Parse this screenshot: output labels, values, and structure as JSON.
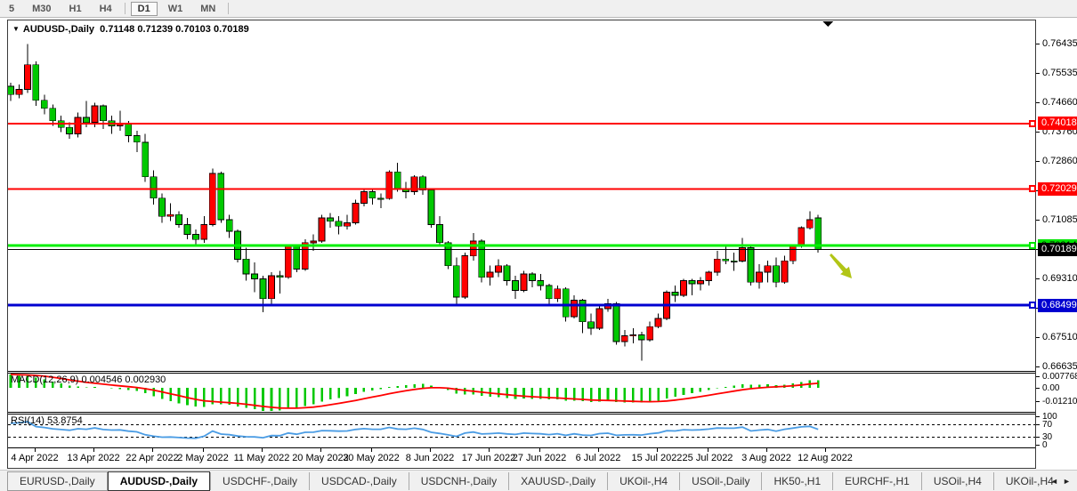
{
  "toolbar": {
    "timeframes": [
      "5",
      "M30",
      "H1",
      "H4",
      "D1",
      "W1",
      "MN"
    ],
    "active": "D1"
  },
  "chart": {
    "title_marker": "▼",
    "symbol": "AUDUSD-,Daily",
    "ohlc_text": "0.71148 0.71239 0.70103 0.70189",
    "shift_marker": "▼"
  },
  "price_axis": {
    "labels": [
      0.76435,
      0.75535,
      0.7466,
      0.7376,
      0.7286,
      0.71985,
      0.71085,
      0.70185,
      0.6931,
      0.6841,
      0.6751,
      0.66635
    ],
    "badges": [
      {
        "text": "0.74018",
        "price": 0.74018,
        "bg": "#FF0000",
        "fg": "#FFFFFF",
        "marker": true
      },
      {
        "text": "0.72029",
        "price": 0.72029,
        "bg": "#FF0000",
        "fg": "#FFFFFF",
        "marker": true
      },
      {
        "text": "0.70314",
        "price": 0.70314,
        "bg": "#00E400",
        "fg": "#000000",
        "marker": true
      },
      {
        "text": "0.70189",
        "price": 0.70189,
        "bg": "#000000",
        "fg": "#FFFFFF",
        "marker": false
      },
      {
        "text": "0.68499",
        "price": 0.68499,
        "bg": "#0000D0",
        "fg": "#FFFFFF",
        "marker": true
      }
    ]
  },
  "chart_data": {
    "type": "candlestick",
    "symbol": "AUDUSD",
    "timeframe": "Daily",
    "last_ohlc": {
      "open": 0.71148,
      "high": 0.71239,
      "low": 0.70103,
      "close": 0.70189
    },
    "up_color": "#FF0000",
    "down_color": "#00C800",
    "candles": [
      [
        0.7515,
        0.7525,
        0.747,
        0.749
      ],
      [
        0.749,
        0.752,
        0.7478,
        0.7505
      ],
      [
        0.7505,
        0.7643,
        0.7495,
        0.758
      ],
      [
        0.758,
        0.759,
        0.7455,
        0.7472
      ],
      [
        0.7472,
        0.7489,
        0.743,
        0.7448
      ],
      [
        0.7448,
        0.746,
        0.7395,
        0.741
      ],
      [
        0.741,
        0.7425,
        0.7375,
        0.739
      ],
      [
        0.739,
        0.7405,
        0.7355,
        0.737
      ],
      [
        0.737,
        0.7435,
        0.736,
        0.742
      ],
      [
        0.742,
        0.747,
        0.739,
        0.7405
      ],
      [
        0.7405,
        0.7465,
        0.739,
        0.7455
      ],
      [
        0.7455,
        0.746,
        0.7385,
        0.741
      ],
      [
        0.741,
        0.7425,
        0.737,
        0.7395
      ],
      [
        0.7395,
        0.744,
        0.738,
        0.74
      ],
      [
        0.74,
        0.741,
        0.7345,
        0.7365
      ],
      [
        0.7365,
        0.738,
        0.7315,
        0.7345
      ],
      [
        0.7345,
        0.737,
        0.7225,
        0.724
      ],
      [
        0.724,
        0.726,
        0.7155,
        0.7175
      ],
      [
        0.7175,
        0.719,
        0.71,
        0.712
      ],
      [
        0.712,
        0.716,
        0.7105,
        0.7125
      ],
      [
        0.7125,
        0.7135,
        0.7085,
        0.7095
      ],
      [
        0.7095,
        0.7115,
        0.705,
        0.7065
      ],
      [
        0.7065,
        0.708,
        0.703,
        0.705
      ],
      [
        0.705,
        0.712,
        0.704,
        0.7095
      ],
      [
        0.7095,
        0.7265,
        0.709,
        0.725
      ],
      [
        0.725,
        0.7255,
        0.71,
        0.711
      ],
      [
        0.711,
        0.7125,
        0.7055,
        0.7075
      ],
      [
        0.7075,
        0.708,
        0.698,
        0.699
      ],
      [
        0.699,
        0.7025,
        0.6925,
        0.6945
      ],
      [
        0.6945,
        0.698,
        0.689,
        0.693
      ],
      [
        0.693,
        0.694,
        0.6829,
        0.687
      ],
      [
        0.687,
        0.695,
        0.6855,
        0.694
      ],
      [
        0.694,
        0.6955,
        0.6885,
        0.6935
      ],
      [
        0.6935,
        0.7035,
        0.693,
        0.703
      ],
      [
        0.703,
        0.7035,
        0.695,
        0.696
      ],
      [
        0.696,
        0.705,
        0.6955,
        0.704
      ],
      [
        0.704,
        0.7065,
        0.7015,
        0.7045
      ],
      [
        0.7045,
        0.7125,
        0.704,
        0.7115
      ],
      [
        0.7115,
        0.713,
        0.7085,
        0.7105
      ],
      [
        0.7105,
        0.712,
        0.7065,
        0.709
      ],
      [
        0.709,
        0.7125,
        0.708,
        0.71
      ],
      [
        0.71,
        0.717,
        0.7095,
        0.716
      ],
      [
        0.716,
        0.7205,
        0.715,
        0.7195
      ],
      [
        0.7195,
        0.72,
        0.7155,
        0.7175
      ],
      [
        0.7175,
        0.719,
        0.7145,
        0.7174
      ],
      [
        0.7174,
        0.726,
        0.717,
        0.7255
      ],
      [
        0.7255,
        0.7283,
        0.7195,
        0.7205
      ],
      [
        0.7205,
        0.7225,
        0.7175,
        0.7195
      ],
      [
        0.7195,
        0.7245,
        0.7185,
        0.724
      ],
      [
        0.724,
        0.7245,
        0.7185,
        0.72
      ],
      [
        0.72,
        0.7205,
        0.7085,
        0.7095
      ],
      [
        0.7095,
        0.712,
        0.703,
        0.704
      ],
      [
        0.704,
        0.7045,
        0.696,
        0.697
      ],
      [
        0.697,
        0.6995,
        0.685,
        0.6875
      ],
      [
        0.6875,
        0.701,
        0.687,
        0.7
      ],
      [
        0.7,
        0.7069,
        0.6985,
        0.7045
      ],
      [
        0.7045,
        0.705,
        0.692,
        0.6935
      ],
      [
        0.6935,
        0.697,
        0.691,
        0.695
      ],
      [
        0.695,
        0.699,
        0.6935,
        0.697
      ],
      [
        0.697,
        0.6975,
        0.691,
        0.6925
      ],
      [
        0.6925,
        0.694,
        0.687,
        0.6895
      ],
      [
        0.6895,
        0.6955,
        0.689,
        0.6945
      ],
      [
        0.6945,
        0.695,
        0.6905,
        0.6925
      ],
      [
        0.6925,
        0.6945,
        0.6895,
        0.691
      ],
      [
        0.691,
        0.6915,
        0.6855,
        0.687
      ],
      [
        0.687,
        0.691,
        0.686,
        0.69
      ],
      [
        0.69,
        0.6905,
        0.68,
        0.6815
      ],
      [
        0.6815,
        0.688,
        0.681,
        0.6865
      ],
      [
        0.6865,
        0.687,
        0.6765,
        0.68
      ],
      [
        0.68,
        0.6825,
        0.676,
        0.678
      ],
      [
        0.678,
        0.685,
        0.6775,
        0.684
      ],
      [
        0.684,
        0.687,
        0.683,
        0.6855
      ],
      [
        0.6855,
        0.686,
        0.673,
        0.674
      ],
      [
        0.674,
        0.6775,
        0.6725,
        0.6757
      ],
      [
        0.6757,
        0.678,
        0.6735,
        0.676
      ],
      [
        0.676,
        0.677,
        0.6682,
        0.6745
      ],
      [
        0.6745,
        0.68,
        0.674,
        0.6785
      ],
      [
        0.6785,
        0.6825,
        0.678,
        0.681
      ],
      [
        0.681,
        0.6895,
        0.6805,
        0.689
      ],
      [
        0.689,
        0.691,
        0.686,
        0.688
      ],
      [
        0.688,
        0.693,
        0.6875,
        0.6925
      ],
      [
        0.6925,
        0.693,
        0.688,
        0.6915
      ],
      [
        0.6915,
        0.6935,
        0.6895,
        0.6925
      ],
      [
        0.6925,
        0.6955,
        0.691,
        0.695
      ],
      [
        0.695,
        0.7015,
        0.694,
        0.699
      ],
      [
        0.699,
        0.703,
        0.6975,
        0.6985
      ],
      [
        0.6985,
        0.701,
        0.6955,
        0.6984
      ],
      [
        0.6984,
        0.7055,
        0.698,
        0.7025
      ],
      [
        0.7025,
        0.703,
        0.691,
        0.692
      ],
      [
        0.692,
        0.6975,
        0.69,
        0.695
      ],
      [
        0.695,
        0.6985,
        0.692,
        0.697
      ],
      [
        0.697,
        0.6995,
        0.6905,
        0.692
      ],
      [
        0.692,
        0.7,
        0.6915,
        0.6985
      ],
      [
        0.6985,
        0.7035,
        0.6975,
        0.703
      ],
      [
        0.703,
        0.709,
        0.7025,
        0.7085
      ],
      [
        0.7085,
        0.7136,
        0.708,
        0.711
      ],
      [
        0.71148,
        0.71239,
        0.70103,
        0.70189
      ]
    ],
    "hlines": [
      {
        "price": 0.74018,
        "color": "#FF0000",
        "width": 2
      },
      {
        "price": 0.72029,
        "color": "#FF0000",
        "width": 2
      },
      {
        "price": 0.70314,
        "color": "#00F000",
        "width": 3
      },
      {
        "price": 0.70189,
        "color": "#000000",
        "width": 1
      },
      {
        "price": 0.68499,
        "color": "#0000D0",
        "width": 3
      }
    ],
    "x_axis": {
      "labels": [
        "4 Apr 2022",
        "13 Apr 2022",
        "22 Apr 2022",
        "2 May 2022",
        "11 May 2022",
        "20 May 2022",
        "30 May 2022",
        "8 Jun 2022",
        "17 Jun 2022",
        "27 Jun 2022",
        "6 Jul 2022",
        "15 Jul 2022",
        "25 Jul 2022",
        "3 Aug 2022",
        "12 Aug 2022"
      ],
      "tick_indices": [
        2,
        9,
        16,
        22,
        29,
        36,
        42,
        49,
        56,
        62,
        69,
        76,
        82,
        89,
        96
      ]
    },
    "indicators": {
      "macd": {
        "label": "MACD(12,26,9)",
        "values_text": "0.004546 0.002930",
        "axis_labels": [
          "0.007768",
          "0.00",
          "-0.012101"
        ],
        "params": [
          12,
          26,
          9
        ],
        "histogram_color": "#00C800",
        "signal_color": "#FF0000"
      },
      "rsi": {
        "label": "RSI(14)",
        "value_text": "53.8754",
        "axis_labels": [
          "100",
          "70",
          "30",
          "0"
        ],
        "levels": [
          70,
          30
        ],
        "period": 14,
        "line_color": "#4A9CE4"
      }
    }
  },
  "annotations": {
    "arrow": {
      "direction": "down-right",
      "color": "#B2C516"
    }
  },
  "tabs": {
    "items": [
      "EURUSD-,Daily",
      "AUDUSD-,Daily",
      "USDCHF-,Daily",
      "USDCAD-,Daily",
      "USDCNH-,Daily",
      "XAUUSD-,Daily",
      "UKOil-,H4",
      "USOil-,Daily",
      "HK50-,H1",
      "EURCHF-,H1",
      "USOil-,H4",
      "UKOil-,H4"
    ],
    "active_index": 1,
    "scroll_left": "◄",
    "scroll_right": "►"
  }
}
